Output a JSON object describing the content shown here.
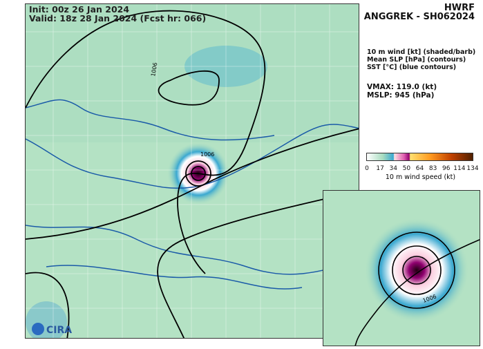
{
  "header": {
    "init": "Init:   00z 26 Jan 2024",
    "valid": "Valid: 18z 28 Jan 2024 (Fcst hr: 066)"
  },
  "title": {
    "model": "HWRF",
    "storm": "ANGGREK - SH062024"
  },
  "legend": {
    "line1": "10 m wind [kt] (shaded/barb)",
    "line2": "Mean SLP [hPa] (contours)",
    "line3": "SST [°C] (blue contours)"
  },
  "stats": {
    "vmax": "VMAX: 119.0 (kt)",
    "mslp": "MSLP:  945 (hPa)"
  },
  "colorbar": {
    "ticks": [
      "0",
      "17",
      "34",
      "50",
      "64",
      "83",
      "96",
      "114",
      "134"
    ],
    "label": "10 m wind speed (kt)",
    "colors": [
      "#ffffff",
      "#a8dcc0",
      "#3aa8d0",
      "#fde0e0",
      "#e060b0",
      "#900070",
      "#ffe070",
      "#ff9a20",
      "#c04000",
      "#502000"
    ]
  },
  "contour_labels": {
    "a": "1006",
    "b": "1006",
    "c": "1006"
  },
  "logo": "CIRA"
}
